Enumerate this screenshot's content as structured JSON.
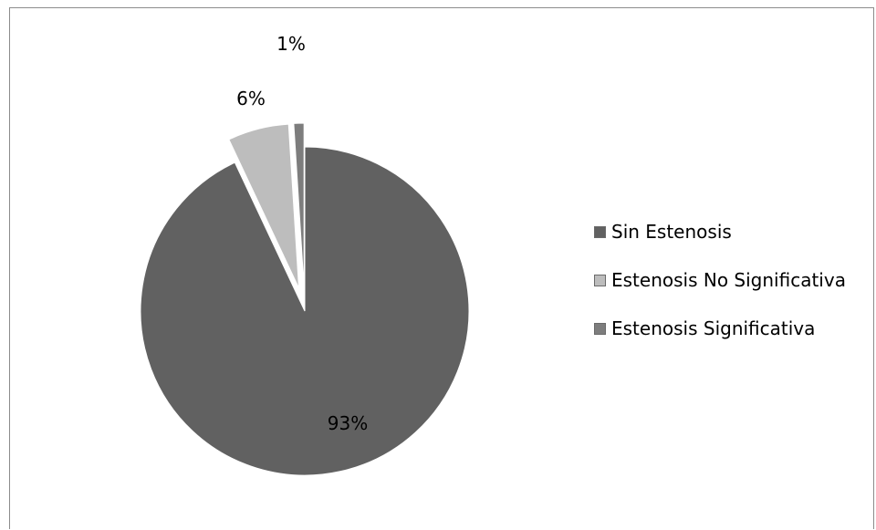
{
  "chart_data": {
    "type": "pie",
    "title": "",
    "categories": [
      "Sin Estenosis",
      "Estenosis No Significativa",
      "Estenosis Significativa"
    ],
    "values": [
      93,
      6,
      1
    ],
    "labels": [
      "93%",
      "6%",
      "1%"
    ],
    "colors": [
      "#616161",
      "#bdbdbd",
      "#7d7d7d"
    ],
    "exploded": [
      false,
      true,
      true
    ],
    "legend_position": "right"
  }
}
